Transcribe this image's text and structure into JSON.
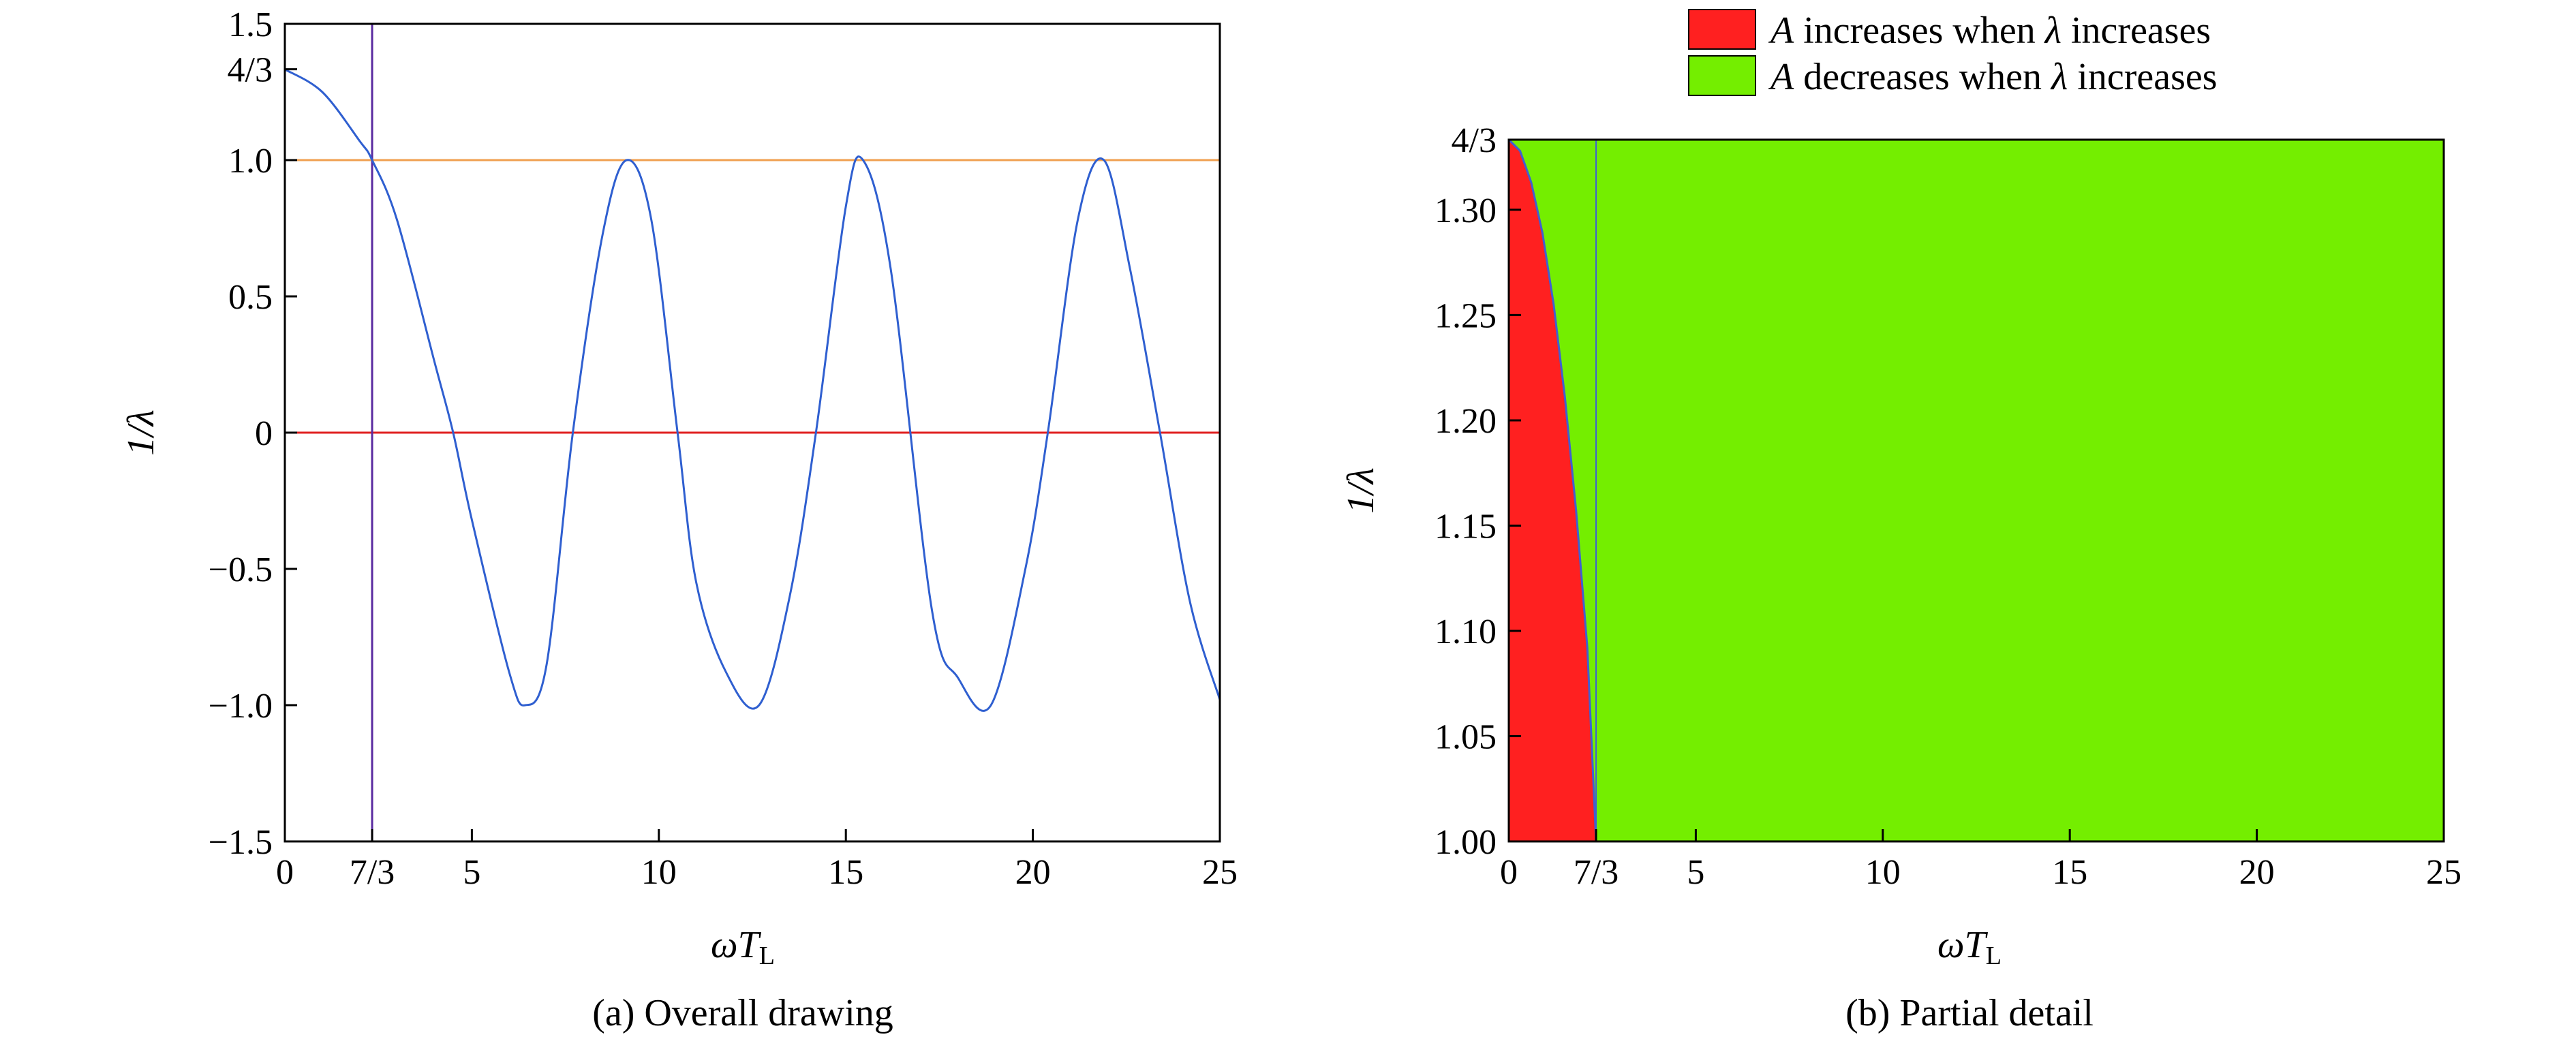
{
  "chart_data": [
    {
      "type": "line",
      "caption": "(a) Overall drawing",
      "xlabel": "ωT",
      "xlabel_sub": "L",
      "ylabel": "1/λ",
      "xlim": [
        0,
        25
      ],
      "ylim": [
        -1.5,
        1.5
      ],
      "xticks": [
        {
          "value": 0,
          "label": "0"
        },
        {
          "value": 2.3333,
          "label": "7/3"
        },
        {
          "value": 5,
          "label": "5"
        },
        {
          "value": 10,
          "label": "10"
        },
        {
          "value": 15,
          "label": "15"
        },
        {
          "value": 20,
          "label": "20"
        },
        {
          "value": 25,
          "label": "25"
        }
      ],
      "yticks": [
        {
          "value": -1.5,
          "label": "−1.5"
        },
        {
          "value": -1.0,
          "label": "−1.0"
        },
        {
          "value": -0.5,
          "label": "−0.5"
        },
        {
          "value": 0,
          "label": "0"
        },
        {
          "value": 0.5,
          "label": "0.5"
        },
        {
          "value": 1.0,
          "label": "1.0"
        },
        {
          "value": 1.3333,
          "label": "4/3"
        },
        {
          "value": 1.5,
          "label": "1.5"
        }
      ],
      "series": [
        {
          "color": "#2f5fd0",
          "x": [
            0,
            1,
            2,
            2.3333,
            3,
            4,
            4.5,
            5,
            6,
            6.43,
            7,
            7.7,
            8.5,
            9.14,
            9.8,
            10.5,
            11,
            11.8,
            12.68,
            13.5,
            14.2,
            15,
            15.46,
            16.2,
            17.3,
            18,
            18.88,
            19.8,
            20.4,
            21.2,
            21.9,
            22.6,
            23.4,
            24.2,
            25
          ],
          "y": [
            1.333,
            1.25,
            1.07,
            1.0,
            0.78,
            0.26,
            0.0,
            -0.32,
            -0.88,
            -1.0,
            -0.85,
            0.0,
            0.73,
            1.0,
            0.78,
            0.0,
            -0.55,
            -0.88,
            -1.0,
            -0.6,
            0.0,
            0.83,
            1.0,
            0.6,
            -0.65,
            -0.9,
            -1.0,
            -0.5,
            0.0,
            0.78,
            1.0,
            0.6,
            0.0,
            -0.62,
            -0.98
          ]
        }
      ],
      "hlines": [
        {
          "y": 1.0,
          "color": "#f0a050"
        },
        {
          "y": 0.0,
          "color": "#e02020"
        }
      ],
      "vlines": [
        {
          "x": 2.3333,
          "color": "#5a2aa0"
        }
      ]
    },
    {
      "type": "area",
      "caption": "(b) Partial detail",
      "xlabel": "ωT",
      "xlabel_sub": "L",
      "ylabel": "1/λ",
      "xlim": [
        0,
        25
      ],
      "ylim": [
        1.0,
        1.3333
      ],
      "xticks": [
        {
          "value": 0,
          "label": "0"
        },
        {
          "value": 2.3333,
          "label": "7/3"
        },
        {
          "value": 5,
          "label": "5"
        },
        {
          "value": 10,
          "label": "10"
        },
        {
          "value": 15,
          "label": "15"
        },
        {
          "value": 20,
          "label": "20"
        },
        {
          "value": 25,
          "label": "25"
        }
      ],
      "yticks": [
        {
          "value": 1.0,
          "label": "1.00"
        },
        {
          "value": 1.05,
          "label": "1.05"
        },
        {
          "value": 1.1,
          "label": "1.10"
        },
        {
          "value": 1.15,
          "label": "1.15"
        },
        {
          "value": 1.2,
          "label": "1.20"
        },
        {
          "value": 1.25,
          "label": "1.25"
        },
        {
          "value": 1.3,
          "label": "1.30"
        },
        {
          "value": 1.3333,
          "label": "4/3"
        }
      ],
      "legend": {
        "position": "top",
        "entries": [
          {
            "label_pre": "A",
            "label_mid": " increases when ",
            "label_sym": "λ",
            "label_post": " increases",
            "color": "#ff2020"
          },
          {
            "label_pre": "A",
            "label_mid": " decreases when ",
            "label_sym": "λ",
            "label_post": " increases",
            "color": "#74ee00"
          }
        ]
      },
      "background_color": "#74ee00",
      "regions": [
        {
          "color": "#ff2020",
          "boundary_x": [
            0,
            0.3,
            0.6,
            0.9,
            1.2,
            1.5,
            1.8,
            2.1,
            2.3333
          ],
          "boundary_y": [
            1.3333,
            1.328,
            1.313,
            1.289,
            1.255,
            1.211,
            1.157,
            1.092,
            1.0
          ]
        }
      ],
      "boundary_color": "#4060d0",
      "vlines": [
        {
          "x": 2.3333,
          "color": "#4060d0"
        }
      ]
    }
  ]
}
